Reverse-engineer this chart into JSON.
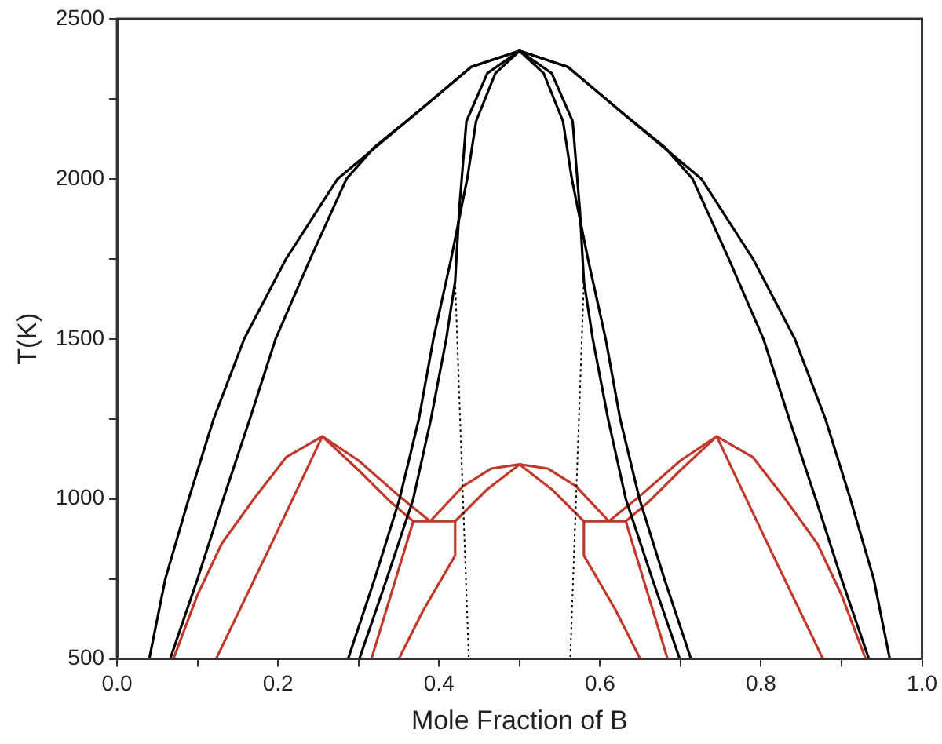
{
  "chart_data": {
    "type": "line",
    "xlabel": "Mole Fraction of B",
    "ylabel": "T(K)",
    "xlim": [
      0,
      1
    ],
    "ylim": [
      500,
      2500
    ],
    "xticks": [
      {
        "value": 0,
        "label": "0.0"
      },
      {
        "value": 0.1,
        "label": null
      },
      {
        "value": 0.2,
        "label": "0.2"
      },
      {
        "value": 0.3,
        "label": null
      },
      {
        "value": 0.4,
        "label": "0.4"
      },
      {
        "value": 0.5,
        "label": null
      },
      {
        "value": 0.6,
        "label": "0.6"
      },
      {
        "value": 0.7,
        "label": null
      },
      {
        "value": 0.8,
        "label": "0.8"
      },
      {
        "value": 0.9,
        "label": null
      },
      {
        "value": 1,
        "label": "1.0"
      }
    ],
    "yticks": [
      500,
      {
        "value": 750,
        "label": null
      },
      1000,
      {
        "value": 1250,
        "label": null
      },
      1500,
      {
        "value": 1750,
        "label": null
      },
      2000,
      {
        "value": 2250,
        "label": null
      },
      2500
    ],
    "grid": false,
    "legend": false,
    "marker": "none",
    "series": [
      {
        "color": "#000000",
        "x": [
          0.04,
          0.06,
          0.089,
          0.12,
          0.158,
          0.21,
          0.274,
          0.374,
          0.44,
          0.5,
          0.56,
          0.626,
          0.726,
          0.79,
          0.842,
          0.88,
          0.911,
          0.94,
          0.96
        ],
        "values": [
          500,
          750,
          1000,
          1250,
          1500,
          1750,
          2000,
          2210,
          2350,
          2400,
          2350,
          2210,
          2000,
          1750,
          1500,
          1250,
          1000,
          750,
          500
        ]
      },
      {
        "color": "#000000",
        "x": [
          0.066,
          0.1,
          0.132,
          0.165,
          0.197,
          0.24,
          0.285,
          0.32,
          0.374,
          0.44,
          0.5,
          0.56,
          0.626,
          0.68,
          0.715,
          0.76,
          0.803,
          0.835,
          0.868,
          0.9,
          0.934
        ],
        "values": [
          500,
          750,
          1000,
          1250,
          1500,
          1750,
          2000,
          2100,
          2210,
          2350,
          2400,
          2350,
          2210,
          2100,
          2000,
          1750,
          1500,
          1250,
          1000,
          750,
          500
        ]
      },
      {
        "color": "#000000",
        "x": [
          0.287,
          0.32,
          0.351,
          0.375,
          0.393,
          0.415,
          0.435,
          0.446,
          0.47,
          0.5,
          0.53,
          0.554,
          0.565,
          0.585,
          0.607,
          0.625,
          0.649,
          0.68,
          0.713
        ],
        "values": [
          500,
          750,
          1000,
          1250,
          1500,
          1750,
          2000,
          2180,
          2330,
          2400,
          2330,
          2180,
          2000,
          1750,
          1500,
          1250,
          1000,
          750,
          500
        ]
      },
      {
        "color": "#000000",
        "x": [
          0.301,
          0.335,
          0.368,
          0.39,
          0.409,
          0.42,
          0.425,
          0.434,
          0.46,
          0.5,
          0.54,
          0.566,
          0.575,
          0.58,
          0.591,
          0.61,
          0.632,
          0.665,
          0.699
        ],
        "values": [
          500,
          750,
          1000,
          1250,
          1500,
          1680,
          1900,
          2180,
          2330,
          2400,
          2330,
          2180,
          1900,
          1680,
          1500,
          1250,
          1000,
          750,
          500
        ]
      },
      {
        "color": "#000000",
        "line_style": "dotted",
        "x": [
          0.42,
          0.437
        ],
        "values": [
          1680,
          500
        ]
      },
      {
        "color": "#000000",
        "line_style": "dotted",
        "x": [
          0.58,
          0.563
        ],
        "values": [
          1680,
          500
        ]
      },
      {
        "color": "#c0392b",
        "x": [
          0.07,
          0.1,
          0.13,
          0.17,
          0.21,
          0.255,
          0.3,
          0.35,
          0.389
        ],
        "values": [
          500,
          700,
          860,
          1000,
          1130,
          1195,
          1120,
          1010,
          930
        ]
      },
      {
        "color": "#c0392b",
        "x": [
          0.123,
          0.19,
          0.255,
          0.3,
          0.34,
          0.368,
          0.316
        ],
        "values": [
          500,
          850,
          1195,
          1090,
          990,
          930,
          500
        ]
      },
      {
        "color": "#c0392b",
        "x": [
          0.368,
          0.42,
          0.42,
          0.38,
          0.35
        ],
        "values": [
          930,
          930,
          823,
          650,
          500
        ]
      },
      {
        "color": "#c0392b",
        "x": [
          0.389,
          0.43,
          0.465,
          0.5,
          0.535,
          0.57,
          0.611
        ],
        "values": [
          930,
          1040,
          1095,
          1108,
          1095,
          1040,
          930
        ]
      },
      {
        "color": "#c0392b",
        "x": [
          0.42,
          0.46,
          0.5,
          0.54,
          0.58
        ],
        "values": [
          930,
          1030,
          1108,
          1030,
          930
        ]
      },
      {
        "color": "#c0392b",
        "x": [
          0.632,
          0.58,
          0.58,
          0.62,
          0.65
        ],
        "values": [
          930,
          930,
          823,
          650,
          500
        ]
      },
      {
        "color": "#c0392b",
        "x": [
          0.877,
          0.81,
          0.745,
          0.7,
          0.66,
          0.632,
          0.684
        ],
        "values": [
          500,
          850,
          1195,
          1090,
          990,
          930,
          500
        ]
      },
      {
        "color": "#c0392b",
        "x": [
          0.93,
          0.9,
          0.87,
          0.83,
          0.79,
          0.745,
          0.7,
          0.65,
          0.611
        ],
        "values": [
          500,
          700,
          860,
          1000,
          1130,
          1195,
          1120,
          1010,
          930
        ]
      }
    ]
  }
}
